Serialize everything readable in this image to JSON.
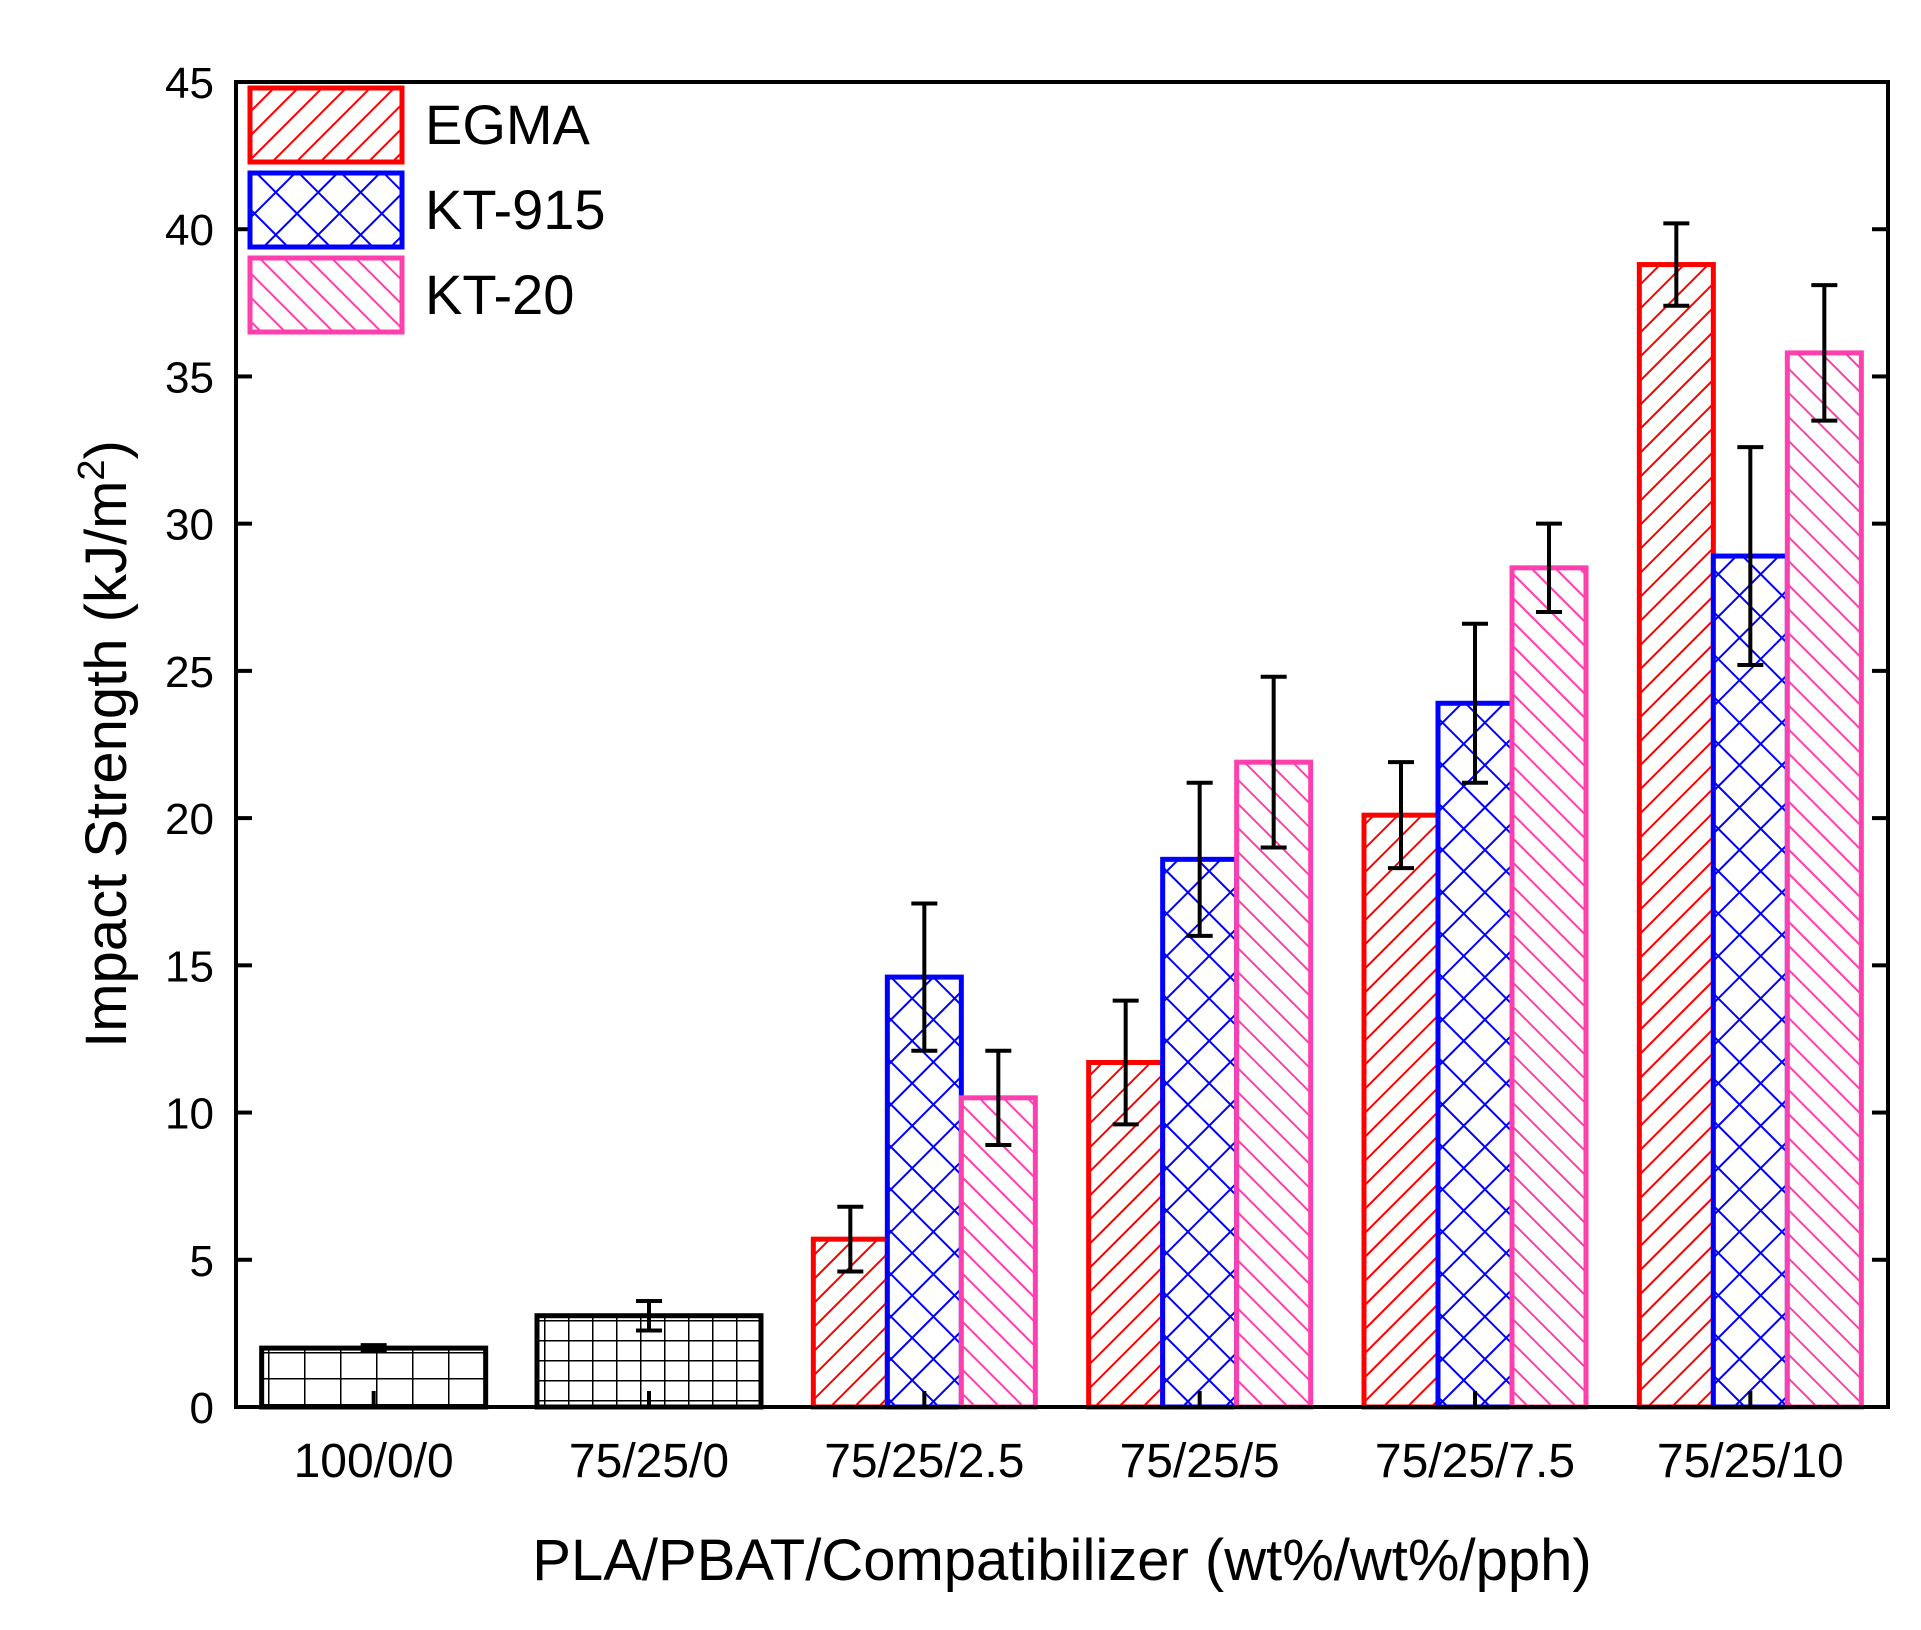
{
  "chart_data": {
    "type": "bar",
    "title": "",
    "xlabel": "PLA/PBAT/Compatibilizer (wt%/wt%/pph)",
    "ylabel_main": "Impact Strength (kJ/m",
    "ylabel_sup": "2",
    "ylabel_close": ")",
    "ylim": [
      0,
      45
    ],
    "yticks": [
      "0",
      "5",
      "10",
      "15",
      "20",
      "25",
      "30",
      "35",
      "40",
      "45"
    ],
    "categories": [
      "100/0/0",
      "75/25/0",
      "75/25/2.5",
      "75/25/5",
      "75/25/7.5",
      "75/25/10"
    ],
    "legend_position": "top-left",
    "controls": [
      {
        "category": "100/0/0",
        "value": 2.0,
        "error": 0.1,
        "color": "#000000",
        "pattern": "grid-wide"
      },
      {
        "category": "75/25/0",
        "value": 3.1,
        "error": 0.5,
        "color": "#000000",
        "pattern": "grid-dense"
      }
    ],
    "series": [
      {
        "name": "EGMA",
        "color": "#ff0000",
        "pattern": "diag-forward",
        "values": [
          null,
          null,
          5.7,
          11.7,
          20.1,
          38.8
        ],
        "errors": [
          null,
          null,
          1.1,
          2.1,
          1.8,
          1.4
        ]
      },
      {
        "name": "KT-915",
        "color": "#0000ff",
        "pattern": "crosshatch",
        "values": [
          null,
          null,
          14.6,
          18.6,
          23.9,
          28.9
        ],
        "errors": [
          null,
          null,
          2.5,
          2.6,
          2.7,
          3.7
        ]
      },
      {
        "name": "KT-20",
        "color": "#ff3fae",
        "pattern": "diag-back",
        "values": [
          null,
          null,
          10.5,
          21.9,
          28.5,
          35.8
        ],
        "errors": [
          null,
          null,
          1.6,
          2.9,
          1.5,
          2.3
        ]
      }
    ]
  }
}
